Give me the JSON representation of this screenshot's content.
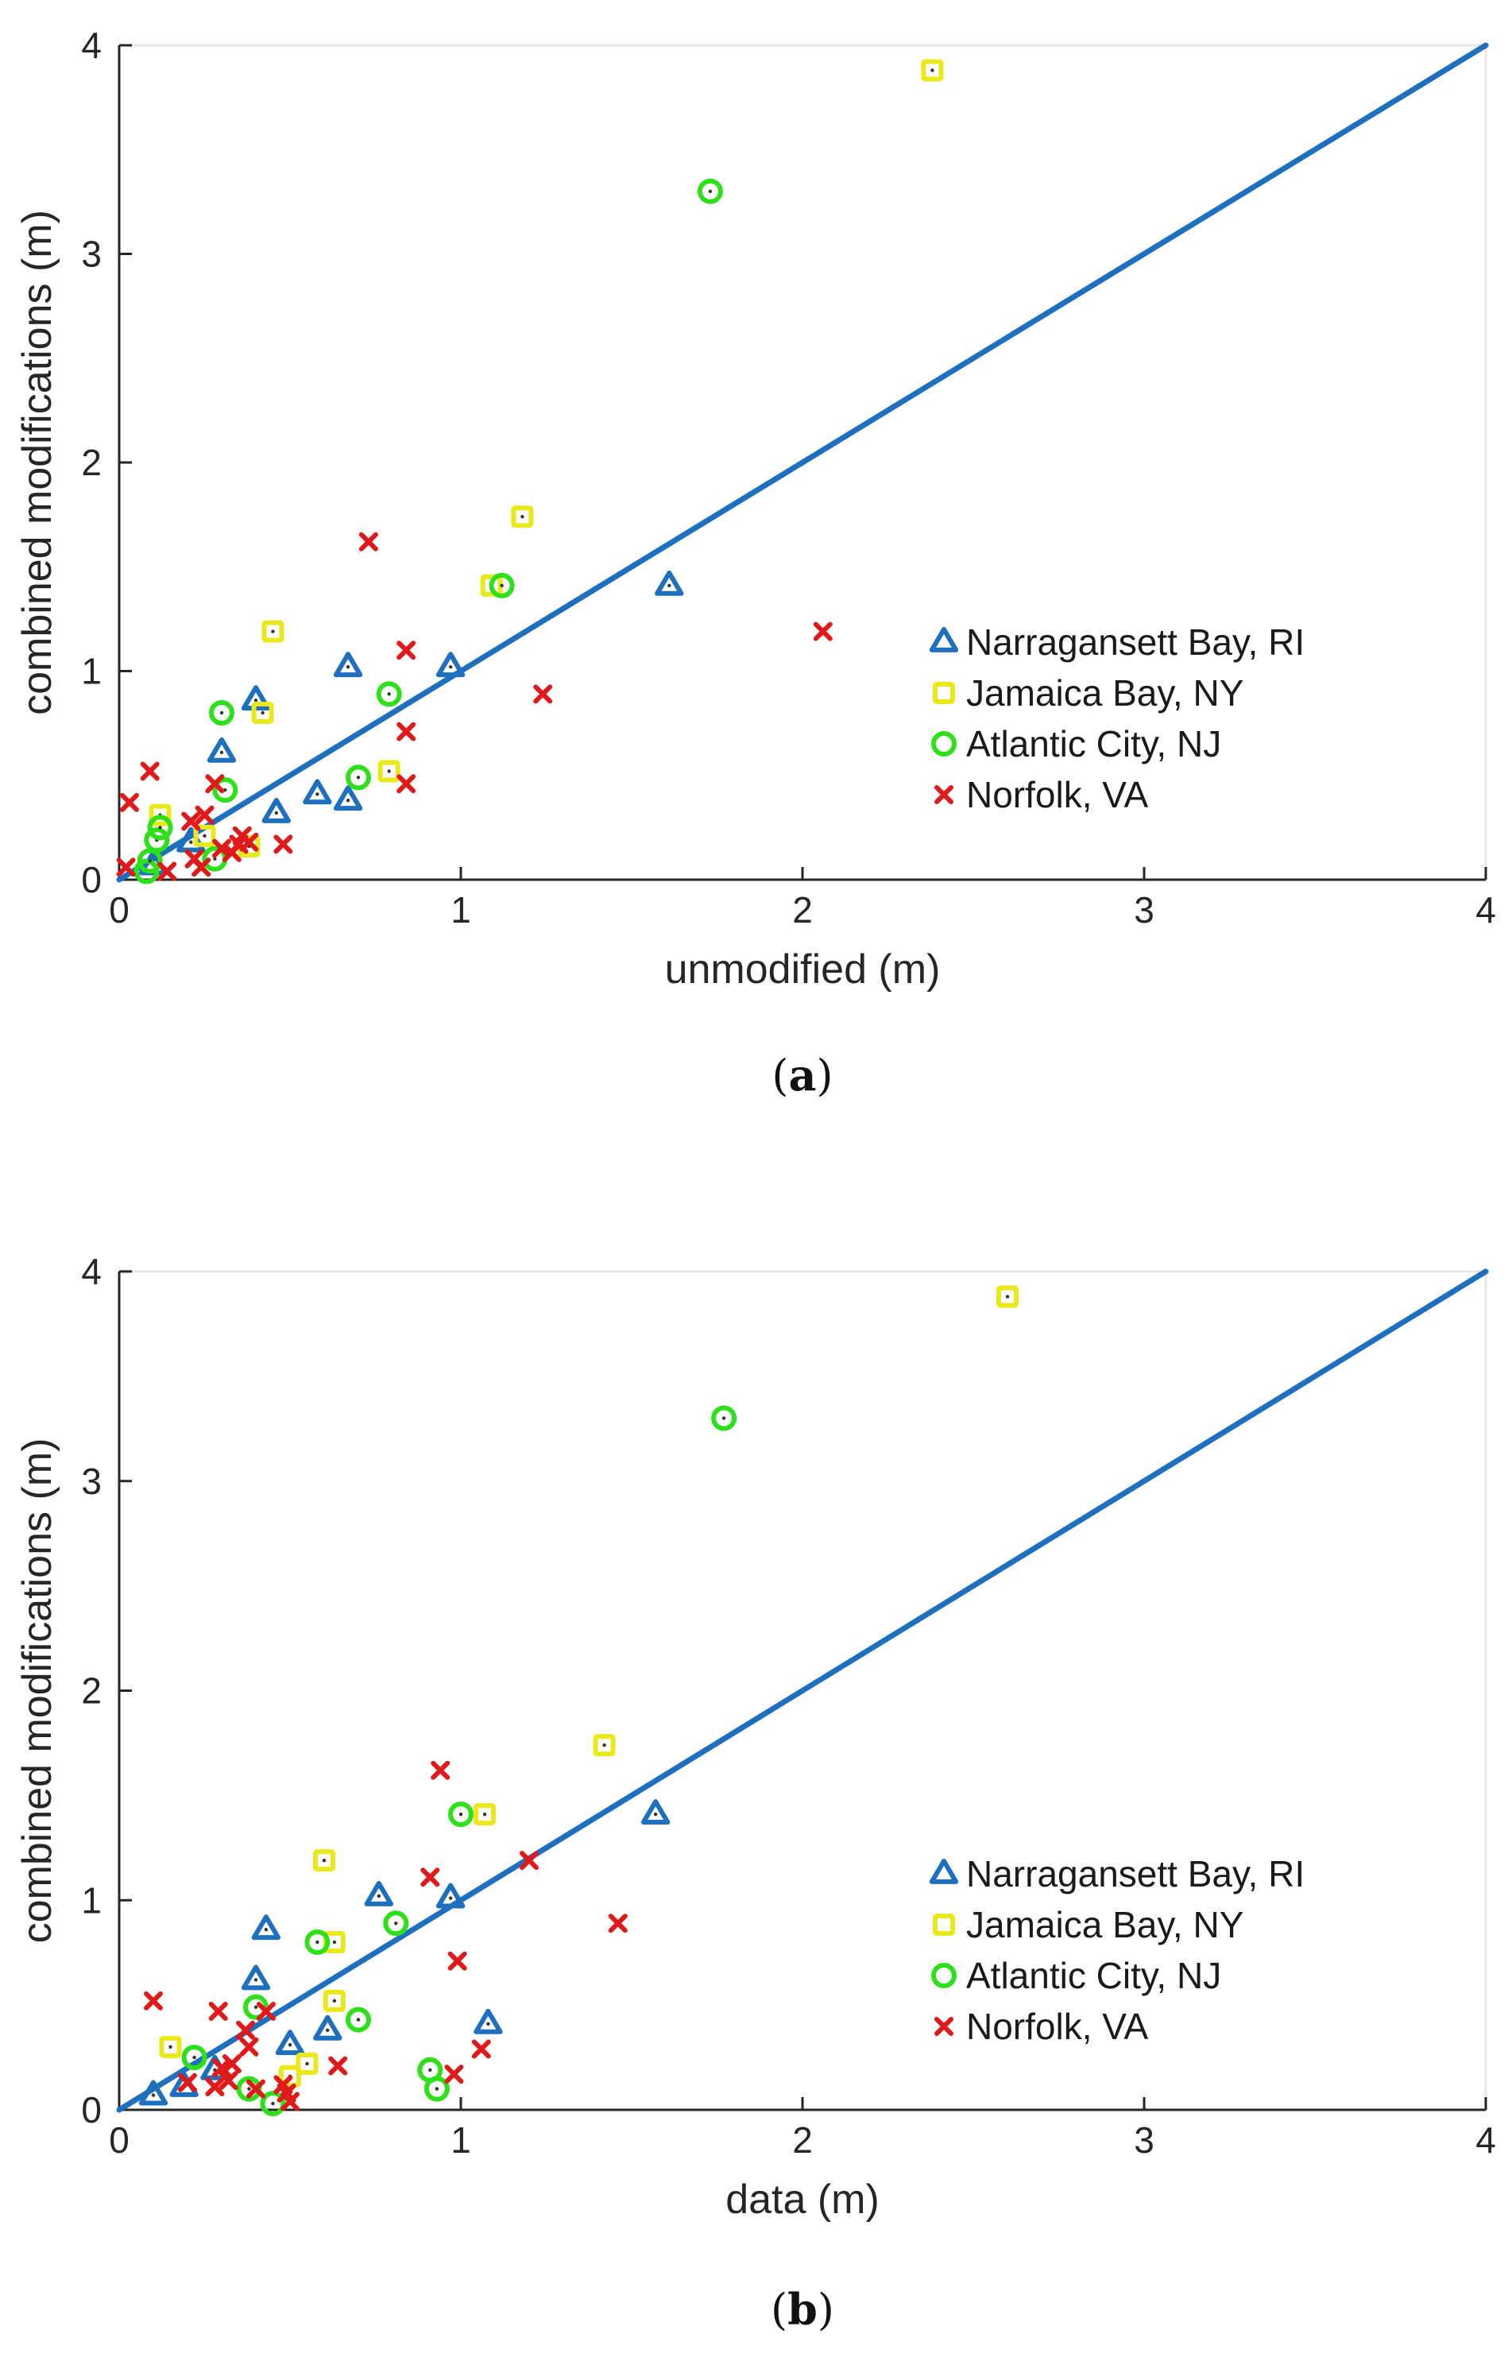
{
  "chart_data": [
    {
      "type": "scatter",
      "panel_label": "(a)",
      "panel_letter": "a",
      "xlabel": "unmodified (m)",
      "ylabel": "combined modifications (m)",
      "xlim": [
        0,
        4
      ],
      "ylim": [
        0,
        4
      ],
      "xticks": [
        "0",
        "1",
        "2",
        "3",
        "4"
      ],
      "yticks": [
        "0",
        "1",
        "2",
        "3",
        "4"
      ],
      "grid": false,
      "legend_position": "right",
      "reference_line": {
        "name": "1:1 line",
        "color": "#1f6fbf",
        "x": [
          0,
          4
        ],
        "y": [
          0,
          4
        ]
      },
      "series": [
        {
          "name": "Narragansett Bay, RI",
          "marker": "triangle",
          "color": "#1f6fbf",
          "points": [
            [
              0.1,
              0.07
            ],
            [
              0.21,
              0.18
            ],
            [
              0.3,
              0.61
            ],
            [
              0.4,
              0.86
            ],
            [
              0.46,
              0.32
            ],
            [
              0.58,
              0.41
            ],
            [
              0.67,
              1.02
            ],
            [
              0.67,
              0.38
            ],
            [
              0.97,
              1.02
            ],
            [
              1.61,
              1.41
            ]
          ]
        },
        {
          "name": "Jamaica Bay, NY",
          "marker": "square",
          "color": "#e8e81a",
          "points": [
            [
              0.12,
              0.31
            ],
            [
              0.25,
              0.21
            ],
            [
              0.38,
              0.16
            ],
            [
              0.42,
              0.8
            ],
            [
              0.45,
              1.19
            ],
            [
              0.79,
              0.52
            ],
            [
              1.09,
              1.41
            ],
            [
              1.18,
              1.74
            ],
            [
              2.38,
              3.88
            ]
          ]
        },
        {
          "name": "Atlantic City, NJ",
          "marker": "circle",
          "color": "#2de01a",
          "points": [
            [
              0.08,
              0.04
            ],
            [
              0.09,
              0.09
            ],
            [
              0.11,
              0.19
            ],
            [
              0.12,
              0.25
            ],
            [
              0.28,
              0.1
            ],
            [
              0.3,
              0.8
            ],
            [
              0.31,
              0.43
            ],
            [
              0.7,
              0.49
            ],
            [
              0.79,
              0.89
            ],
            [
              1.12,
              1.41
            ],
            [
              1.73,
              3.3
            ]
          ]
        },
        {
          "name": "Norfolk, VA",
          "marker": "x",
          "color": "#e01a1a",
          "points": [
            [
              0.02,
              0.06
            ],
            [
              0.03,
              0.37
            ],
            [
              0.09,
              0.52
            ],
            [
              0.14,
              0.04
            ],
            [
              0.21,
              0.28
            ],
            [
              0.22,
              0.1
            ],
            [
              0.24,
              0.06
            ],
            [
              0.25,
              0.31
            ],
            [
              0.28,
              0.46
            ],
            [
              0.3,
              0.15
            ],
            [
              0.33,
              0.13
            ],
            [
              0.35,
              0.17
            ],
            [
              0.36,
              0.21
            ],
            [
              0.38,
              0.18
            ],
            [
              0.48,
              0.17
            ],
            [
              0.73,
              1.62
            ],
            [
              0.84,
              1.1
            ],
            [
              0.84,
              0.71
            ],
            [
              0.84,
              0.46
            ],
            [
              1.24,
              0.89
            ],
            [
              2.06,
              1.19
            ]
          ]
        }
      ]
    },
    {
      "type": "scatter",
      "panel_label": "(b)",
      "panel_letter": "b",
      "xlabel": "data (m)",
      "ylabel": "combined modifications (m)",
      "xlim": [
        0,
        4
      ],
      "ylim": [
        0,
        4
      ],
      "xticks": [
        "0",
        "1",
        "2",
        "3",
        "4"
      ],
      "yticks": [
        "0",
        "1",
        "2",
        "3",
        "4"
      ],
      "grid": false,
      "legend_position": "right",
      "reference_line": {
        "name": "1:1 line",
        "color": "#1f6fbf",
        "x": [
          0,
          4
        ],
        "y": [
          0,
          4
        ]
      },
      "series": [
        {
          "name": "Narragansett Bay, RI",
          "marker": "triangle",
          "color": "#1f6fbf",
          "points": [
            [
              0.1,
              0.07
            ],
            [
              0.19,
              0.11
            ],
            [
              0.28,
              0.19
            ],
            [
              0.4,
              0.62
            ],
            [
              0.43,
              0.86
            ],
            [
              0.5,
              0.31
            ],
            [
              0.61,
              0.38
            ],
            [
              0.76,
              1.02
            ],
            [
              0.97,
              1.01
            ],
            [
              1.08,
              0.41
            ],
            [
              1.57,
              1.41
            ]
          ]
        },
        {
          "name": "Jamaica Bay, NY",
          "marker": "square",
          "color": "#e8e81a",
          "points": [
            [
              0.15,
              0.3
            ],
            [
              0.5,
              0.16
            ],
            [
              0.55,
              0.22
            ],
            [
              0.6,
              1.19
            ],
            [
              0.63,
              0.8
            ],
            [
              0.63,
              0.52
            ],
            [
              1.07,
              1.41
            ],
            [
              1.42,
              1.74
            ],
            [
              2.6,
              3.88
            ]
          ]
        },
        {
          "name": "Atlantic City, NJ",
          "marker": "circle",
          "color": "#2de01a",
          "points": [
            [
              0.22,
              0.25
            ],
            [
              0.38,
              0.1
            ],
            [
              0.4,
              0.49
            ],
            [
              0.45,
              0.03
            ],
            [
              0.58,
              0.8
            ],
            [
              0.7,
              0.43
            ],
            [
              0.81,
              0.89
            ],
            [
              0.91,
              0.19
            ],
            [
              0.93,
              0.1
            ],
            [
              1.0,
              1.41
            ],
            [
              1.77,
              3.3
            ]
          ]
        },
        {
          "name": "Norfolk, VA",
          "marker": "x",
          "color": "#e01a1a",
          "points": [
            [
              0.1,
              0.52
            ],
            [
              0.2,
              0.13
            ],
            [
              0.28,
              0.11
            ],
            [
              0.29,
              0.47
            ],
            [
              0.3,
              0.2
            ],
            [
              0.32,
              0.14
            ],
            [
              0.33,
              0.22
            ],
            [
              0.37,
              0.38
            ],
            [
              0.38,
              0.3
            ],
            [
              0.4,
              0.1
            ],
            [
              0.43,
              0.47
            ],
            [
              0.48,
              0.12
            ],
            [
              0.49,
              0.08
            ],
            [
              0.5,
              0.04
            ],
            [
              0.64,
              0.21
            ],
            [
              0.91,
              1.11
            ],
            [
              0.94,
              1.62
            ],
            [
              0.98,
              0.17
            ],
            [
              0.99,
              0.71
            ],
            [
              1.06,
              0.29
            ],
            [
              1.2,
              1.19
            ],
            [
              1.46,
              0.89
            ]
          ]
        }
      ]
    }
  ]
}
